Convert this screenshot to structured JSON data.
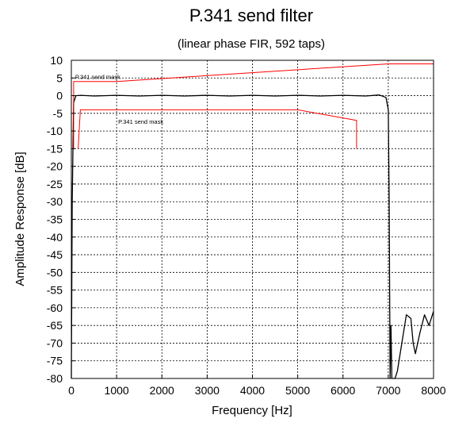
{
  "chart_data": {
    "type": "line",
    "title": "P.341 send filter",
    "subtitle": "(linear phase FIR, 592 taps)",
    "xlabel": "Frequency [Hz]",
    "ylabel": "Amplitude Response [dB]",
    "xlim": [
      0,
      8000
    ],
    "ylim": [
      -80,
      10
    ],
    "xticks": [
      "0",
      "1000",
      "2000",
      "3000",
      "4000",
      "5000",
      "6000",
      "7000",
      "8000"
    ],
    "yticks": [
      "10",
      "5",
      "0",
      "-5",
      "-10",
      "-15",
      "-20",
      "-25",
      "-30",
      "-35",
      "-40",
      "-45",
      "-50",
      "-55",
      "-60",
      "-65",
      "-70",
      "-75",
      "-80"
    ],
    "grid": true,
    "annotations": [
      {
        "text": "P.341 send mask",
        "x": 50,
        "y": 5.2
      },
      {
        "text": "P.341 send mask",
        "x": 1000,
        "y": -7.5
      }
    ],
    "series": [
      {
        "color": "#000000",
        "x": [
          0,
          20,
          50,
          100,
          200,
          500,
          1000,
          1500,
          2000,
          2500,
          3000,
          3500,
          4000,
          4500,
          5000,
          5500,
          6000,
          6500,
          6800,
          6950,
          7000,
          7020,
          7040,
          7060,
          7080,
          7100,
          7150,
          7200,
          7300,
          7400,
          7500,
          7550,
          7600,
          7700,
          7800,
          7900,
          8000
        ],
        "y": [
          -80,
          -30,
          -2,
          0,
          0.1,
          -0.1,
          0.1,
          -0.1,
          0.1,
          -0.1,
          0.1,
          -0.1,
          0.1,
          -0.1,
          0.1,
          -0.1,
          0.1,
          -0.1,
          0.2,
          -0.5,
          -4,
          -30,
          -80,
          -65,
          -80,
          -80,
          -80,
          -78,
          -70,
          -62,
          -63,
          -70,
          -73,
          -67,
          -62,
          -65,
          -61
        ]
      },
      {
        "color": "#ff0000",
        "x": [
          50,
          50,
          1000,
          7000,
          8000,
          8000
        ],
        "y": [
          -15,
          4,
          4,
          9,
          9,
          -15
        ]
      },
      {
        "color": "#ff0000",
        "x": [
          150,
          200,
          5000,
          6300,
          6300
        ],
        "y": [
          -15,
          -4,
          -4,
          -7,
          -15
        ]
      }
    ]
  }
}
